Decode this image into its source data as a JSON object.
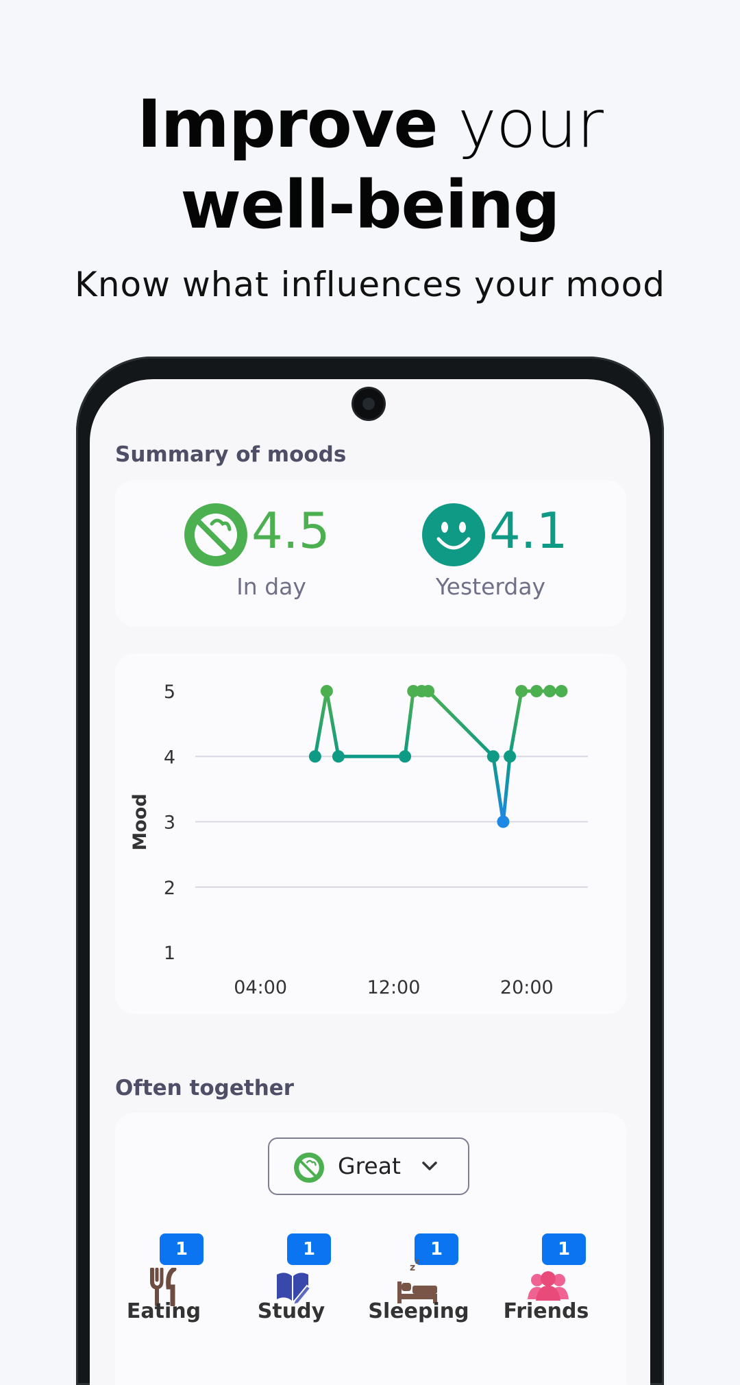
{
  "hero": {
    "title_bold_1": "Improve",
    "title_light": "your",
    "title_bold_2": "well-being",
    "subtitle": "Know what influences your mood"
  },
  "summary": {
    "title": "Summary of moods",
    "today": {
      "value": "4.5",
      "label": "In day",
      "color": "#4caf50",
      "icon": "great-mood-icon"
    },
    "yesterday": {
      "value": "4.1",
      "label": "Yesterday",
      "color": "#0e9a84",
      "icon": "smile-icon"
    }
  },
  "chart_data": {
    "type": "line",
    "ylabel": "Mood",
    "xlabel": "",
    "ylim": [
      1,
      5
    ],
    "y_ticks": [
      "5",
      "4",
      "3",
      "2",
      "1"
    ],
    "x_ticks": [
      "04:00",
      "12:00",
      "20:00"
    ],
    "x_tick_hours": [
      4,
      12,
      20
    ],
    "xlim_hours": [
      0,
      24
    ],
    "grid": "horizontal",
    "points": [
      {
        "hour": 7.2,
        "mood": 4
      },
      {
        "hour": 7.9,
        "mood": 5
      },
      {
        "hour": 8.6,
        "mood": 4
      },
      {
        "hour": 12.6,
        "mood": 4
      },
      {
        "hour": 13.1,
        "mood": 5
      },
      {
        "hour": 13.6,
        "mood": 5
      },
      {
        "hour": 14.0,
        "mood": 5
      },
      {
        "hour": 17.9,
        "mood": 4
      },
      {
        "hour": 18.5,
        "mood": 3
      },
      {
        "hour": 18.9,
        "mood": 4
      },
      {
        "hour": 19.6,
        "mood": 5
      },
      {
        "hour": 20.5,
        "mood": 5
      },
      {
        "hour": 21.3,
        "mood": 5
      },
      {
        "hour": 22.0,
        "mood": 5
      }
    ],
    "colors": {
      "5": "#4caf50",
      "4": "#0e9a84",
      "3": "#1e88e5",
      "grid": "#d8d8e2"
    }
  },
  "together": {
    "title": "Often together",
    "dropdown_label": "Great",
    "categories": [
      {
        "label": "Eating",
        "count": "1",
        "icon": "fork-knife-icon",
        "color": "#6d4c41"
      },
      {
        "label": "Study",
        "count": "1",
        "icon": "book-pen-icon",
        "color": "#3949ab"
      },
      {
        "label": "Sleeping",
        "count": "1",
        "icon": "bed-icon",
        "color": "#795548"
      },
      {
        "label": "Friends",
        "count": "1",
        "icon": "people-icon",
        "color": "#e84a7a"
      }
    ]
  }
}
